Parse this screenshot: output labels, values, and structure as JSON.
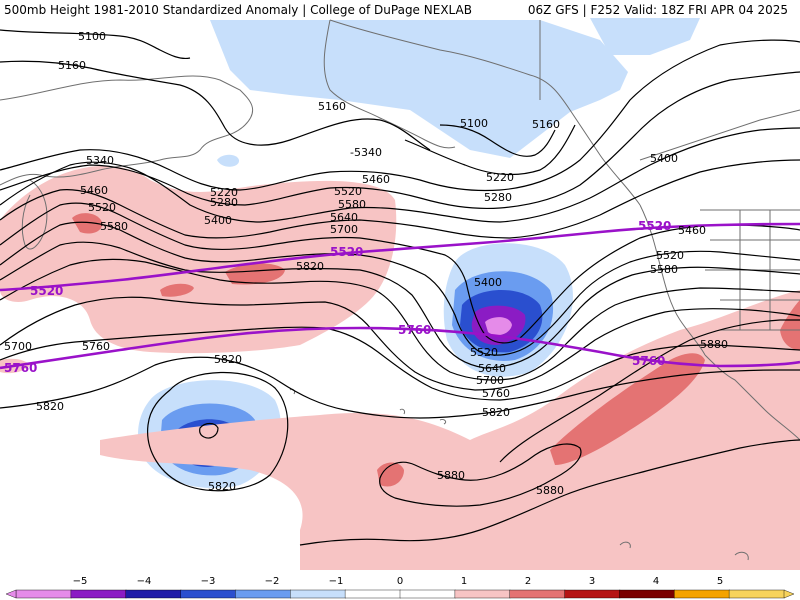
{
  "header": {
    "left": "500mb Height 1981-2010 Standardized Anomaly | College of DuPage NEXLAB",
    "right": "06Z GFS | F252 Valid: 18Z FRI APR 04 2025"
  },
  "colors": {
    "anom_neg1": "#c7dffb",
    "anom_neg2": "#6a9cf0",
    "anom_neg3": "#2a4fcf",
    "anom_neg4": "#1f1ca8",
    "anom_neg5": "#8b1cc4",
    "anom_neg6": "#e58be9",
    "anom_pos1": "#f7c4c4",
    "anom_pos2": "#e47373",
    "height_line": "#000000",
    "highlight_line": "#9a12c9",
    "coast": "#6f6f6f"
  },
  "height_labels": [
    "5100",
    "5160",
    "5160",
    "5100",
    "5160",
    "5400",
    "5340",
    "5460",
    "5520",
    "5580",
    "5220",
    "5280",
    "5400",
    "-5340",
    "5460",
    "5520",
    "5580",
    "5640",
    "5700",
    "5220",
    "5280",
    "5820",
    "5400",
    "5520",
    "5640",
    "5700",
    "5760",
    "5820",
    "5700",
    "5760",
    "5820",
    "5820",
    "5820",
    "5880",
    "5880",
    "5880",
    "5460",
    "5520",
    "5580"
  ],
  "highlight_labels": [
    "5520",
    "5520",
    "5520",
    "5760",
    "5760",
    "5760"
  ],
  "colorbar": {
    "ticks": [
      "−5",
      "−4",
      "−3",
      "−2",
      "−1",
      "0",
      "1",
      "2",
      "3",
      "4",
      "5"
    ],
    "colors": [
      "#e58be9",
      "#8b1cc4",
      "#1f1ca8",
      "#2a4fcf",
      "#6a9cf0",
      "#c7dffb",
      "#ffffff",
      "#ffffff",
      "#f7c4c4",
      "#e47373",
      "#b51414",
      "#7a0000",
      "#f4a300",
      "#f7d35c"
    ]
  }
}
